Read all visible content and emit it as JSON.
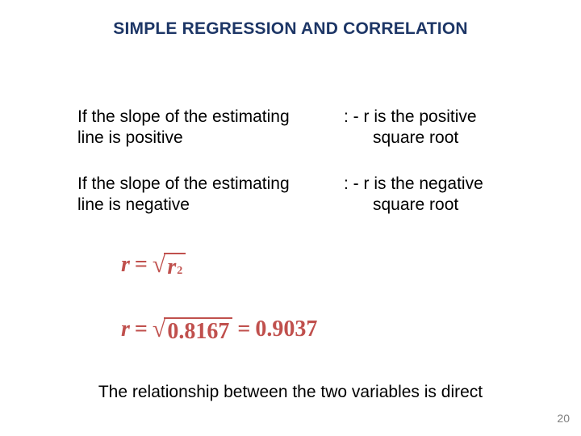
{
  "colors": {
    "title": "#1d3666",
    "body": "#000000",
    "formula": "#c0504d",
    "page_number": "#7f7f7f"
  },
  "title": "SIMPLE REGRESSION AND CORRELATION",
  "rows": [
    {
      "left_l1": "If the slope of the estimating",
      "left_l2": "line is positive",
      "right_l1": ": - r is the positive",
      "right_l2": "square root"
    },
    {
      "left_l1": "If the slope of the estimating",
      "left_l2": "line is negative",
      "right_l1": ": - r is the negative",
      "right_l2": "square root"
    }
  ],
  "formula1": {
    "var": "r",
    "radicand_var": "r",
    "radicand_exp": "2"
  },
  "formula2": {
    "var": "r",
    "radicand": "0.8167",
    "result": "0.9037"
  },
  "conclusion": "The relationship between the two variables is direct",
  "page_number": "20"
}
